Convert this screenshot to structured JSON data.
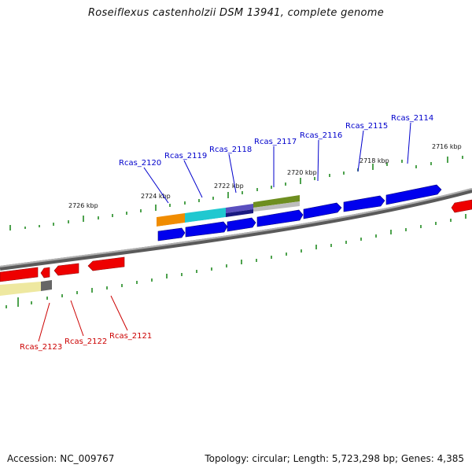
{
  "title": "Roseiflexus castenholzii DSM 13941, complete genome",
  "footer": {
    "accession": "Accession: NC_009767",
    "summary": "Topology: circular; Length: 5,723,298 bp; Genes: 4,385"
  },
  "colors": {
    "forward_label": "#0000cc",
    "reverse_label": "#cc0000",
    "forward_gene": "#0000ee",
    "reverse_gene": "#ee0000",
    "backbone": "#888888",
    "tick": "#228b22"
  },
  "scale_labels": [
    "2726 kbp",
    "2724 kbp",
    "2722 kbp",
    "2720 kbp",
    "2718 kbp",
    "2716 kbp"
  ],
  "gene_labels_forward": [
    "Rcas_2120",
    "Rcas_2119",
    "Rcas_2118",
    "Rcas_2117",
    "Rcas_2116",
    "Rcas_2115",
    "Rcas_2114"
  ],
  "gene_labels_reverse": [
    "Rcas_2123",
    "Rcas_2122",
    "Rcas_2121"
  ]
}
